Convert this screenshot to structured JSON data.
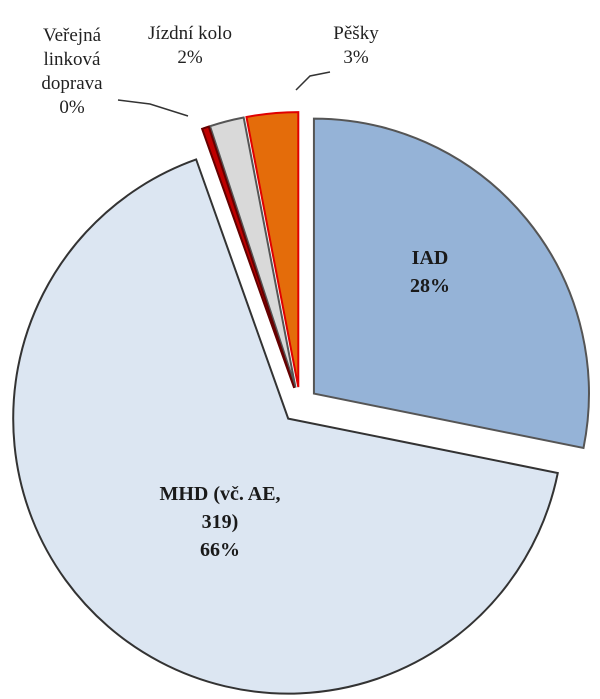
{
  "chart_data": {
    "type": "pie",
    "categories": [
      "IAD",
      "MHD (vč. AE, 319)",
      "Veřejná linková doprava",
      "Jízdní kolo",
      "Pěšky"
    ],
    "values": [
      28,
      66,
      0.4,
      2,
      3
    ],
    "value_labels": [
      "28%",
      "66%",
      "0%",
      "2%",
      "3%"
    ],
    "colors": [
      "#95b3d7",
      "#dce6f2",
      "#c00000",
      "#d9d9d9",
      "#e46c0a"
    ]
  }
}
